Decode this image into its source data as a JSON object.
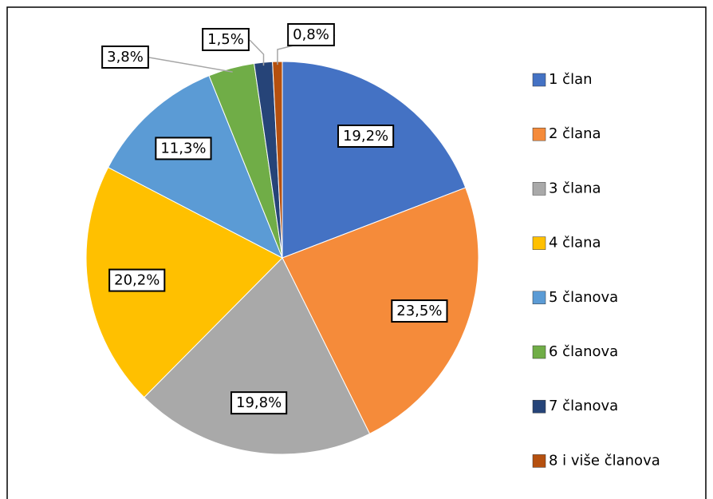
{
  "chart_data": {
    "type": "pie",
    "categories": [
      "1 član",
      "2 člana",
      "3 člana",
      "4 člana",
      "5 članova",
      "6 članova",
      "7 članova",
      "8 i više članova"
    ],
    "values": [
      19.2,
      23.5,
      19.8,
      20.2,
      11.3,
      3.8,
      1.5,
      0.8
    ],
    "value_labels": [
      "19,2%",
      "23,5%",
      "19,8%",
      "20,2%",
      "11,3%",
      "3,8%",
      "1,5%",
      "0,8%"
    ],
    "colors": [
      "#4472c4",
      "#f58b3a",
      "#a9a9a9",
      "#ffc000",
      "#5b9bd5",
      "#70ad47",
      "#264478",
      "#b5500f"
    ],
    "legend": "right"
  }
}
